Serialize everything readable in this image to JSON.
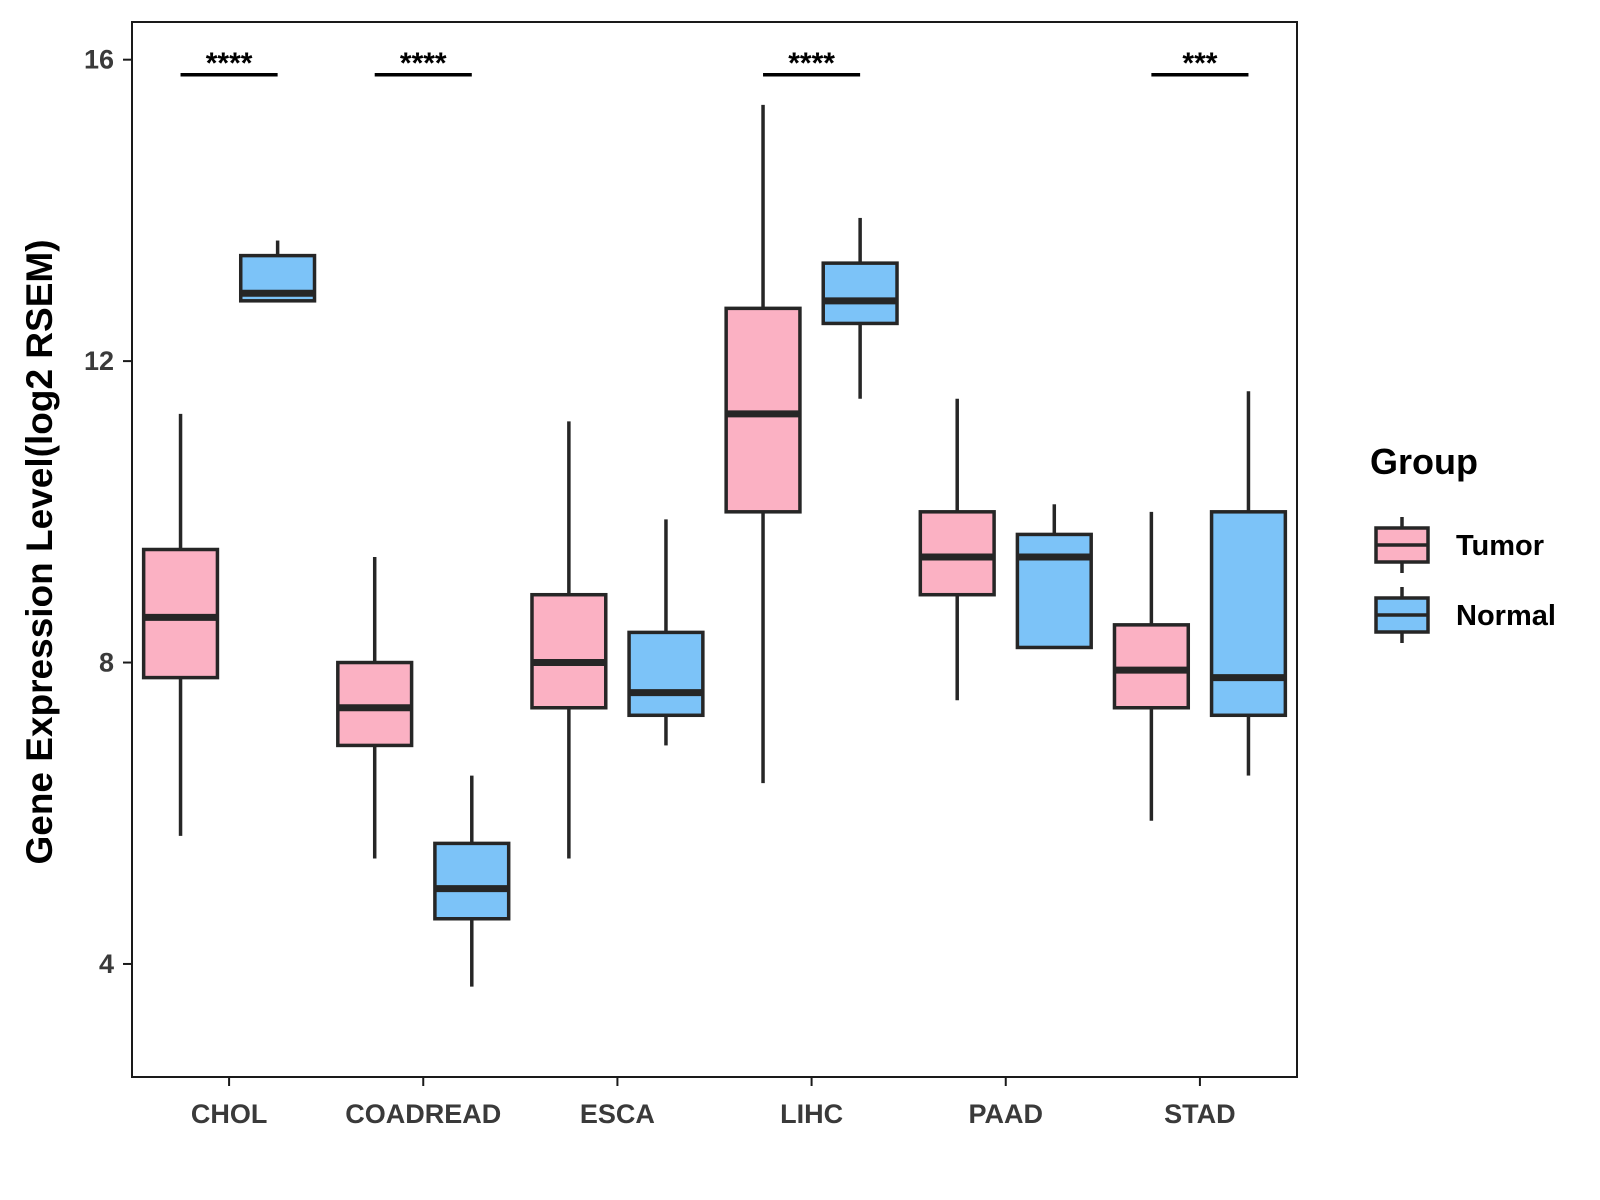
{
  "chart_data": {
    "type": "boxplot",
    "ylabel": "Gene Expression Level(log2 RSEM)",
    "xlabel": "",
    "ylim": [
      2.5,
      16.5
    ],
    "yticks": [
      4,
      8,
      12,
      16
    ],
    "categories": [
      "CHOL",
      "COADREAD",
      "ESCA",
      "LIHC",
      "PAAD",
      "STAD"
    ],
    "legend": {
      "title": "Group",
      "position": "right",
      "entries": [
        "Tumor",
        "Normal"
      ]
    },
    "series": [
      {
        "name": "Tumor",
        "color": "#fbb1c3",
        "boxes": [
          {
            "min": 5.7,
            "q1": 7.8,
            "median": 8.6,
            "q3": 9.5,
            "max": 11.3
          },
          {
            "min": 5.4,
            "q1": 6.9,
            "median": 7.4,
            "q3": 8.0,
            "max": 9.4
          },
          {
            "min": 5.4,
            "q1": 7.4,
            "median": 8.0,
            "q3": 8.9,
            "max": 11.2
          },
          {
            "min": 6.4,
            "q1": 10.0,
            "median": 11.3,
            "q3": 12.7,
            "max": 15.4
          },
          {
            "min": 7.5,
            "q1": 8.9,
            "median": 9.4,
            "q3": 10.0,
            "max": 11.5
          },
          {
            "min": 5.9,
            "q1": 7.4,
            "median": 7.9,
            "q3": 8.5,
            "max": 10.0
          }
        ]
      },
      {
        "name": "Normal",
        "color": "#7cc3f8",
        "boxes": [
          {
            "min": 12.8,
            "q1": 12.8,
            "median": 12.9,
            "q3": 13.4,
            "max": 13.6
          },
          {
            "min": 3.7,
            "q1": 4.6,
            "median": 5.0,
            "q3": 5.6,
            "max": 6.5
          },
          {
            "min": 6.9,
            "q1": 7.3,
            "median": 7.6,
            "q3": 8.4,
            "max": 9.9
          },
          {
            "min": 11.5,
            "q1": 12.5,
            "median": 12.8,
            "q3": 13.3,
            "max": 13.9
          },
          {
            "min": 8.2,
            "q1": 8.2,
            "median": 9.4,
            "q3": 9.7,
            "max": 10.1
          },
          {
            "min": 6.5,
            "q1": 7.3,
            "median": 7.8,
            "q3": 10.0,
            "max": 11.6
          }
        ]
      }
    ],
    "significance": [
      {
        "category": "CHOL",
        "label": "****"
      },
      {
        "category": "COADREAD",
        "label": "****"
      },
      {
        "category": "LIHC",
        "label": "****"
      },
      {
        "category": "STAD",
        "label": "***"
      }
    ]
  }
}
